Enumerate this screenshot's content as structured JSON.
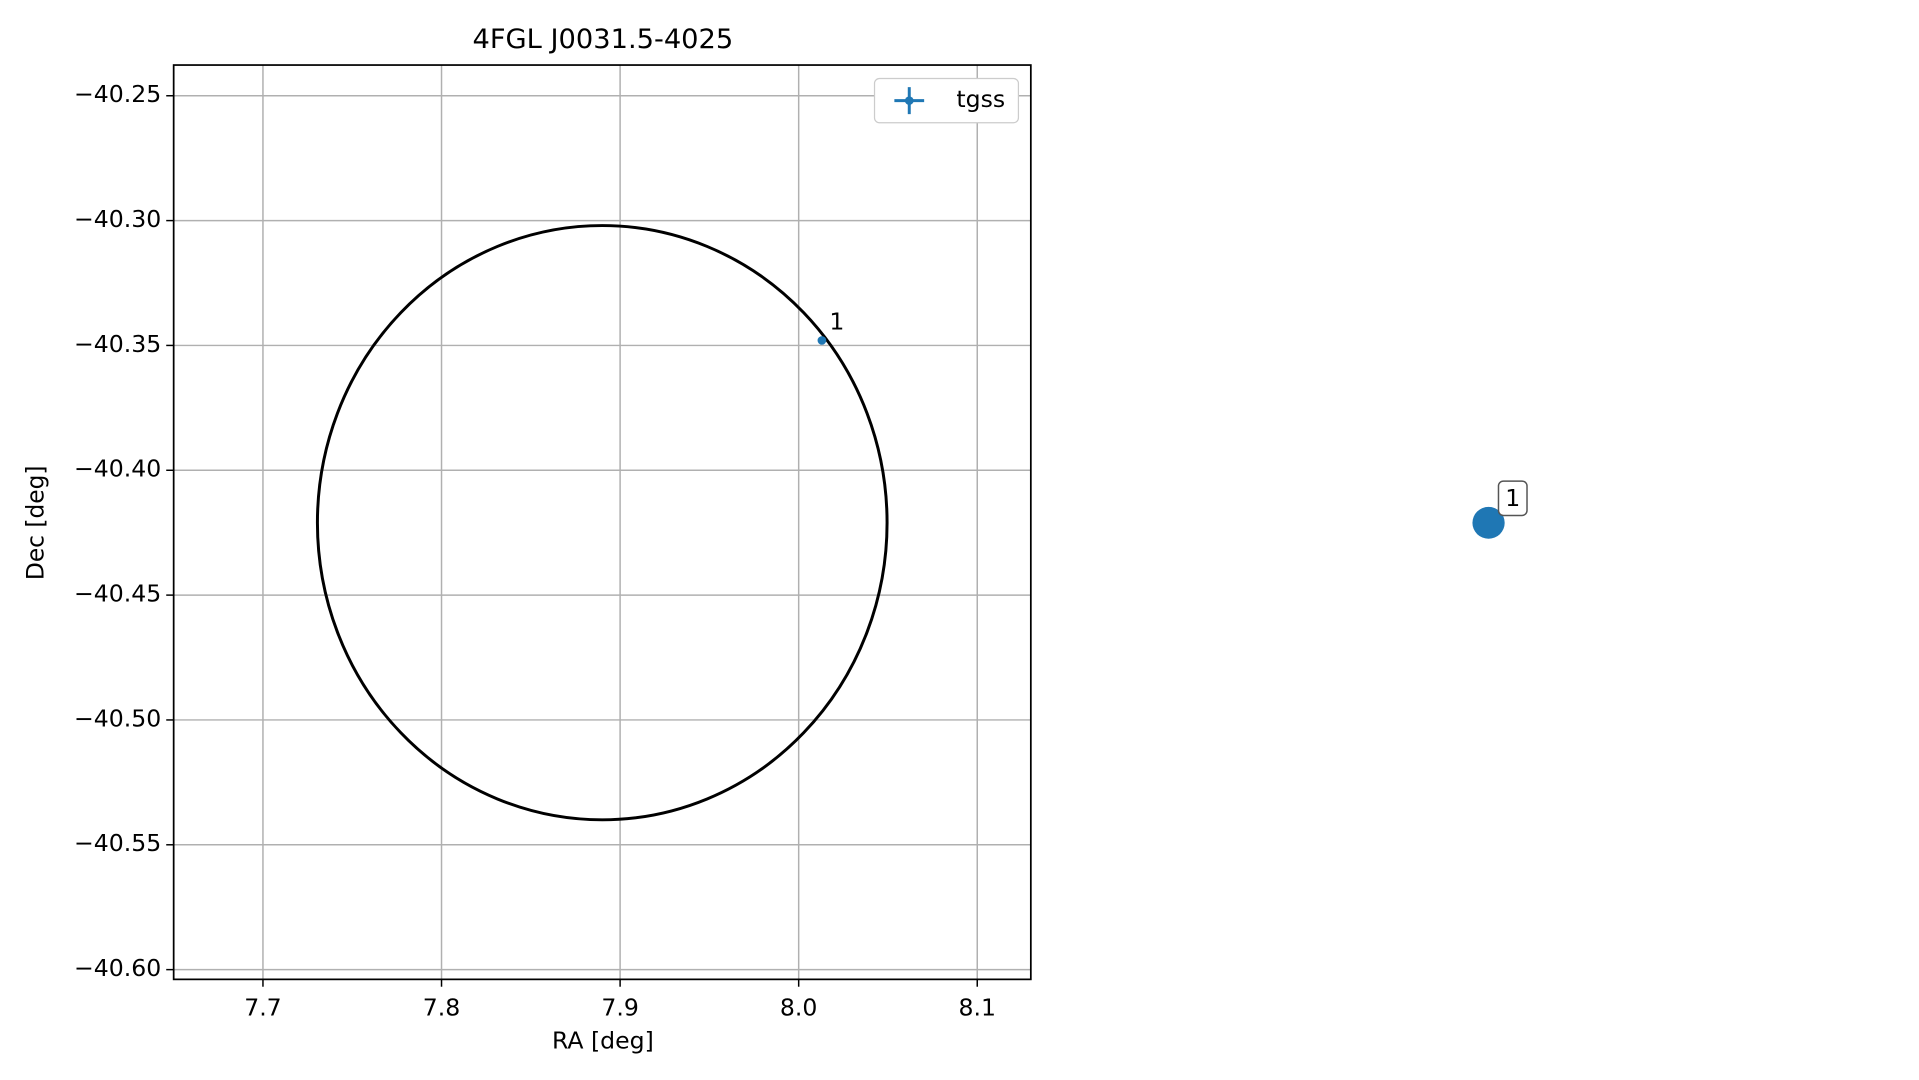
{
  "chart_data": [
    {
      "type": "scatter",
      "title": "4FGL J0031.5-4025",
      "x_label": "RA [deg]",
      "y_label": "Dec [deg]",
      "series": [
        {
          "name": "tgss",
          "color": "#1f77b4",
          "x": [
            8.013
          ],
          "values": [
            -40.348
          ]
        }
      ],
      "annotations": [
        {
          "text": "1",
          "x": 8.013,
          "y": -40.348
        }
      ],
      "ellipse": {
        "center": [
          7.89,
          -40.421
        ],
        "width": 0.319,
        "height": 0.238,
        "color": "#000000"
      },
      "xlim": [
        7.65,
        8.13
      ],
      "ylim": [
        -40.6039,
        -40.2377
      ],
      "xticks": [
        7.7,
        7.8,
        7.9,
        {
          "value": 8,
          "label": "8.0"
        },
        8.1
      ],
      "yticks": [
        {
          "value": -40.25,
          "label": "−40.25"
        },
        {
          "value": -40.3,
          "label": "−40.30"
        },
        {
          "value": -40.35,
          "label": "−40.35"
        },
        {
          "value": -40.4,
          "label": "−40.40"
        },
        {
          "value": -40.45,
          "label": "−40.45"
        },
        {
          "value": -40.5,
          "label": "−40.50"
        },
        {
          "value": -40.55,
          "label": "−40.55"
        },
        {
          "value": -40.6,
          "label": "−40.60"
        }
      ],
      "grid": true,
      "legend": "upper right"
    },
    {
      "type": "marker",
      "labels": [
        "1"
      ],
      "color": "#1f77b4"
    }
  ]
}
